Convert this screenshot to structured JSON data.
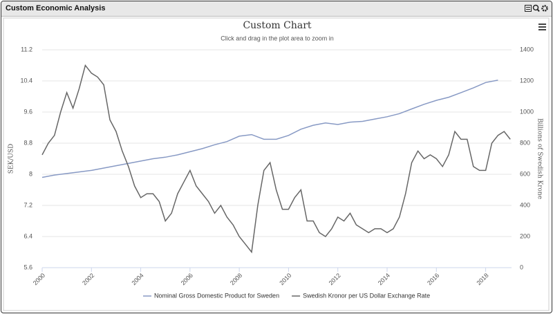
{
  "header": {
    "title": "Custom Economic Analysis"
  },
  "chart_data": {
    "type": "line",
    "title": "Custom Chart",
    "subtitle": "Click and drag in the plot area to zoom in",
    "y_label": "SEK/USD",
    "y2_label": "Billions of Swedish Krone",
    "xlim": [
      2000,
      2019.05
    ],
    "xticks": [
      2000,
      2002,
      2004,
      2006,
      2008,
      2010,
      2012,
      2014,
      2016,
      2018
    ],
    "ylim": [
      5.6,
      11.2
    ],
    "yticks": [
      5.6,
      6.4,
      7.2,
      8,
      8.8,
      9.6,
      10.4,
      11.2
    ],
    "y2lim": [
      0,
      1400
    ],
    "y2ticks": [
      0,
      200,
      400,
      600,
      800,
      1000,
      1200,
      1400
    ],
    "grid": true,
    "legend": "bottom",
    "series": [
      {
        "name": "Nominal Gross Domestic Product for Sweden",
        "color": "#8799c4",
        "axis": "y2",
        "x": [
          2000,
          2000.5,
          2001,
          2001.5,
          2002,
          2002.5,
          2003,
          2003.5,
          2004,
          2004.5,
          2005,
          2005.5,
          2006,
          2006.5,
          2007,
          2007.5,
          2008,
          2008.5,
          2009,
          2009.5,
          2010,
          2010.5,
          2011,
          2011.5,
          2012,
          2012.5,
          2013,
          2013.5,
          2014,
          2014.5,
          2015,
          2015.5,
          2016,
          2016.5,
          2017,
          2017.5,
          2018,
          2018.5
        ],
        "values": [
          580,
          595,
          605,
          615,
          625,
          640,
          655,
          670,
          685,
          700,
          710,
          725,
          745,
          765,
          790,
          810,
          845,
          855,
          825,
          825,
          850,
          890,
          915,
          930,
          920,
          935,
          940,
          955,
          970,
          990,
          1020,
          1050,
          1075,
          1095,
          1125,
          1155,
          1190,
          1205
        ]
      },
      {
        "name": "Swedish Kronor per US Dollar Exchange Rate",
        "color": "#666666",
        "x": [
          2000,
          2000.25,
          2000.5,
          2000.75,
          2001,
          2001.25,
          2001.5,
          2001.75,
          2002,
          2002.25,
          2002.5,
          2002.75,
          2003,
          2003.25,
          2003.5,
          2003.75,
          2004,
          2004.25,
          2004.5,
          2004.75,
          2005,
          2005.25,
          2005.5,
          2005.75,
          2006,
          2006.25,
          2006.5,
          2006.75,
          2007,
          2007.25,
          2007.5,
          2007.75,
          2008,
          2008.25,
          2008.5,
          2008.75,
          2009,
          2009.25,
          2009.5,
          2009.75,
          2010,
          2010.25,
          2010.5,
          2010.75,
          2011,
          2011.25,
          2011.5,
          2011.75,
          2012,
          2012.25,
          2012.5,
          2012.75,
          2013,
          2013.25,
          2013.5,
          2013.75,
          2014,
          2014.25,
          2014.5,
          2014.75,
          2015,
          2015.25,
          2015.5,
          2015.75,
          2016,
          2016.25,
          2016.5,
          2016.75,
          2017,
          2017.25,
          2017.5,
          2017.75,
          2018,
          2018.25,
          2018.5,
          2018.75,
          2019
        ],
        "values": [
          8.5,
          8.8,
          9.0,
          9.6,
          10.1,
          9.7,
          10.2,
          10.8,
          10.6,
          10.5,
          10.3,
          9.4,
          9.1,
          8.6,
          8.2,
          7.7,
          7.4,
          7.5,
          7.5,
          7.3,
          6.8,
          7.0,
          7.5,
          7.8,
          8.1,
          7.7,
          7.5,
          7.3,
          7.0,
          7.2,
          6.9,
          6.7,
          6.4,
          6.2,
          6.0,
          7.2,
          8.1,
          8.3,
          7.6,
          7.1,
          7.1,
          7.4,
          7.6,
          6.8,
          6.8,
          6.5,
          6.4,
          6.6,
          6.9,
          6.8,
          7.0,
          6.7,
          6.6,
          6.5,
          6.6,
          6.6,
          6.5,
          6.6,
          6.9,
          7.5,
          8.3,
          8.6,
          8.4,
          8.5,
          8.4,
          8.2,
          8.5,
          9.1,
          8.9,
          8.9,
          8.2,
          8.1,
          8.1,
          8.8,
          9.0,
          9.1,
          8.9
        ]
      }
    ]
  }
}
